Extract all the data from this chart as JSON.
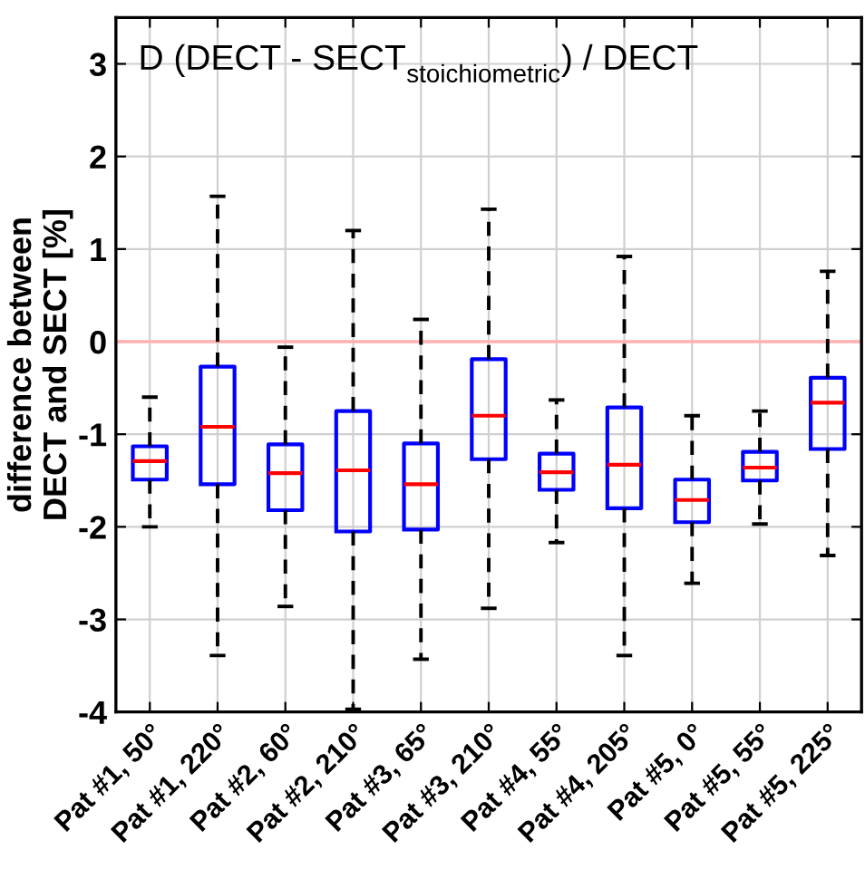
{
  "chart_data": {
    "type": "box",
    "title": "D (DECT - SECT$_{stoichiometric}$) / DECT",
    "ylabel": "difference between\nDECT and SECT [%]",
    "categories": [
      "Pat #1, 50°",
      "Pat #1, 220°",
      "Pat #2, 60°",
      "Pat #2, 210°",
      "Pat #3, 65°",
      "Pat #3, 210°",
      "Pat #4, 55°",
      "Pat #4, 205°",
      "Pat #5, 0°",
      "Pat #5, 55°",
      "Pat #5, 225°"
    ],
    "boxes": [
      {
        "low": -2.0,
        "q1": -1.49,
        "median": -1.29,
        "q3": -1.13,
        "high": -0.6
      },
      {
        "low": -3.39,
        "q1": -1.54,
        "median": -0.92,
        "q3": -0.27,
        "high": 1.57
      },
      {
        "low": -2.86,
        "q1": -1.82,
        "median": -1.42,
        "q3": -1.11,
        "high": -0.06
      },
      {
        "low": -3.97,
        "q1": -2.05,
        "median": -1.39,
        "q3": -0.75,
        "high": 1.2
      },
      {
        "low": -3.43,
        "q1": -2.03,
        "median": -1.54,
        "q3": -1.1,
        "high": 0.24
      },
      {
        "low": -2.88,
        "q1": -1.27,
        "median": -0.8,
        "q3": -0.19,
        "high": 1.43
      },
      {
        "low": -2.17,
        "q1": -1.6,
        "median": -1.41,
        "q3": -1.21,
        "high": -0.63
      },
      {
        "low": -3.39,
        "q1": -1.8,
        "median": -1.33,
        "q3": -0.71,
        "high": 0.92
      },
      {
        "low": -2.61,
        "q1": -1.95,
        "median": -1.71,
        "q3": -1.49,
        "high": -0.8
      },
      {
        "low": -1.97,
        "q1": -1.5,
        "median": -1.36,
        "q3": -1.19,
        "high": -0.75
      },
      {
        "low": -2.31,
        "q1": -1.16,
        "median": -0.66,
        "q3": -0.39,
        "high": 0.76
      }
    ],
    "color": "#0000ff",
    "ylim": [
      -4,
      3.5
    ],
    "yticks": [
      -4,
      -3,
      -2,
      -1,
      0,
      1,
      2,
      3
    ],
    "ref_lines": [
      {
        "axis": "y",
        "value": 0,
        "color": "#ffb0b0"
      }
    ],
    "grid": true
  }
}
